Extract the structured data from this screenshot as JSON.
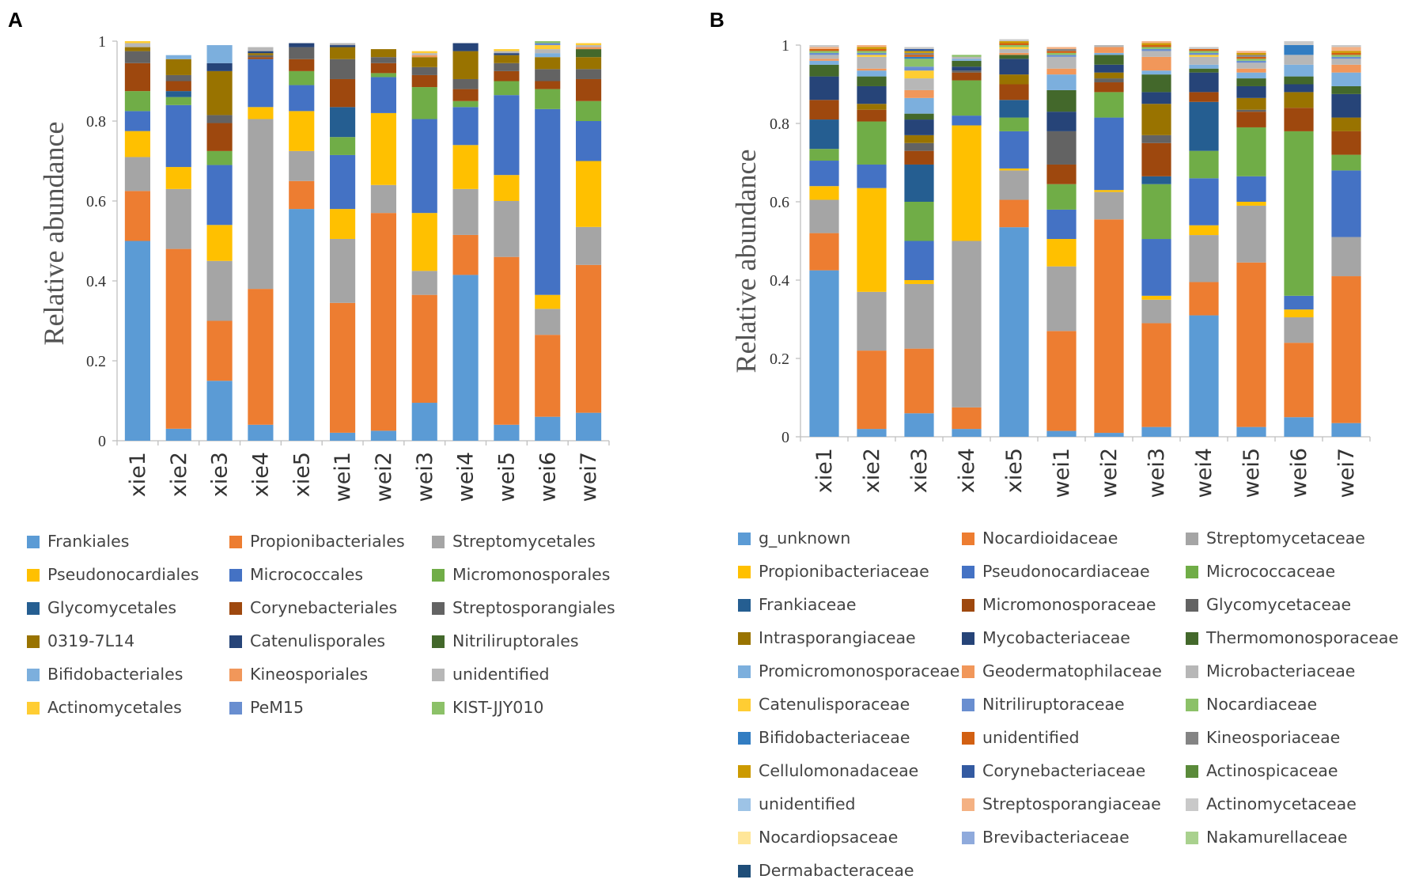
{
  "chart_data": [
    {
      "panel": "A",
      "type": "bar",
      "stacked": true,
      "title": "",
      "xlabel": "",
      "ylabel": "Relative abundance",
      "ylim": [
        0,
        1
      ],
      "yticks": [
        "0",
        "0.2",
        "0.4",
        "0.6",
        "0.8",
        "1"
      ],
      "categories": [
        "xie1",
        "xie2",
        "xie3",
        "xie4",
        "xie5",
        "wei1",
        "wei2",
        "wei3",
        "wei4",
        "wei5",
        "wei6",
        "wei7"
      ],
      "legend_position": "bottom",
      "series": [
        {
          "name": "Frankiales",
          "color": "#5b9bd5",
          "values": [
            0.5,
            0.03,
            0.15,
            0.04,
            0.58,
            0.02,
            0.025,
            0.095,
            0.415,
            0.04,
            0.06,
            0.07
          ]
        },
        {
          "name": "Propionibacteriales",
          "color": "#ed7d31",
          "values": [
            0.125,
            0.45,
            0.15,
            0.34,
            0.07,
            0.325,
            0.545,
            0.27,
            0.1,
            0.42,
            0.205,
            0.37
          ]
        },
        {
          "name": "Streptomycetales",
          "color": "#a5a5a5",
          "values": [
            0.085,
            0.15,
            0.15,
            0.425,
            0.075,
            0.16,
            0.07,
            0.06,
            0.115,
            0.14,
            0.065,
            0.095
          ]
        },
        {
          "name": "Pseudonocardiales",
          "color": "#ffc000",
          "values": [
            0.065,
            0.055,
            0.09,
            0.03,
            0.1,
            0.075,
            0.18,
            0.145,
            0.11,
            0.065,
            0.035,
            0.165
          ]
        },
        {
          "name": "Micrococcales",
          "color": "#4472c4",
          "values": [
            0.05,
            0.155,
            0.15,
            0.12,
            0.065,
            0.135,
            0.09,
            0.235,
            0.095,
            0.2,
            0.465,
            0.1
          ]
        },
        {
          "name": "Micromonosporales",
          "color": "#70ad47",
          "values": [
            0.05,
            0.02,
            0.035,
            0.0,
            0.035,
            0.045,
            0.01,
            0.08,
            0.015,
            0.035,
            0.05,
            0.05
          ]
        },
        {
          "name": "Glycomycetales",
          "color": "#255e91",
          "values": [
            0.0,
            0.015,
            0.0,
            0.0,
            0.0,
            0.075,
            0.0,
            0.0,
            0.0,
            0.0,
            0.0,
            0.0
          ]
        },
        {
          "name": "Corynebacteriales",
          "color": "#9e480e",
          "values": [
            0.07,
            0.025,
            0.07,
            0.005,
            0.03,
            0.07,
            0.025,
            0.03,
            0.03,
            0.025,
            0.02,
            0.055
          ]
        },
        {
          "name": "Streptosporangiales",
          "color": "#636363",
          "values": [
            0.03,
            0.015,
            0.02,
            0.005,
            0.03,
            0.05,
            0.015,
            0.02,
            0.025,
            0.02,
            0.03,
            0.025
          ]
        },
        {
          "name": "0319-7L14",
          "color": "#997300",
          "values": [
            0.01,
            0.04,
            0.11,
            0.005,
            0.0,
            0.03,
            0.02,
            0.025,
            0.07,
            0.02,
            0.03,
            0.03
          ]
        },
        {
          "name": "Catenulisporales",
          "color": "#264478",
          "values": [
            0.0,
            0.0,
            0.02,
            0.005,
            0.01,
            0.005,
            0.0,
            0.0,
            0.02,
            0.005,
            0.0,
            0.0
          ]
        },
        {
          "name": "Nitriliruptorales",
          "color": "#43682b",
          "values": [
            0.0,
            0.0,
            0.0,
            0.0,
            0.0,
            0.0,
            0.0,
            0.0,
            0.0,
            0.0,
            0.0,
            0.02
          ]
        },
        {
          "name": "Bifidobacteriales",
          "color": "#7cafdd",
          "values": [
            0.0,
            0.01,
            0.045,
            0.0,
            0.0,
            0.0,
            0.0,
            0.0,
            0.0,
            0.0,
            0.01,
            0.0
          ]
        },
        {
          "name": "Kineosporiales",
          "color": "#f1975a",
          "values": [
            0.0,
            0.0,
            0.0,
            0.0,
            0.0,
            0.0,
            0.0,
            0.005,
            0.0,
            0.0,
            0.0,
            0.005
          ]
        },
        {
          "name": "unidentified",
          "color": "#b7b7b7",
          "values": [
            0.01,
            0.0,
            0.0,
            0.01,
            0.0,
            0.005,
            0.0,
            0.005,
            0.0,
            0.005,
            0.01,
            0.005
          ]
        },
        {
          "name": "Actinomycetales",
          "color": "#ffcd33",
          "values": [
            0.005,
            0.0,
            0.0,
            0.0,
            0.0,
            0.0,
            0.0,
            0.005,
            0.0,
            0.005,
            0.01,
            0.005
          ]
        },
        {
          "name": "PeM15",
          "color": "#698ed0",
          "values": [
            0.0,
            0.0,
            0.0,
            0.0,
            0.0,
            0.0,
            0.0,
            0.0,
            0.0,
            0.0,
            0.005,
            0.0
          ]
        },
        {
          "name": "KIST-JJY010",
          "color": "#8cc168",
          "values": [
            0.0,
            0.0,
            0.0,
            0.0,
            0.0,
            0.0,
            0.0,
            0.0,
            0.0,
            0.0,
            0.005,
            0.0
          ]
        }
      ]
    },
    {
      "panel": "B",
      "type": "bar",
      "stacked": true,
      "title": "",
      "xlabel": "",
      "ylabel": "Relative abundance",
      "ylim": [
        0,
        1
      ],
      "yticks": [
        "0",
        "0.2",
        "0.4",
        "0.6",
        "0.8",
        "1"
      ],
      "categories": [
        "xie1",
        "xie2",
        "xie3",
        "xie4",
        "xie5",
        "wei1",
        "wei2",
        "wei3",
        "wei4",
        "wei5",
        "wei6",
        "wei7"
      ],
      "legend_position": "bottom",
      "series": [
        {
          "name": "g_unknown",
          "color": "#5b9bd5",
          "values": [
            0.425,
            0.02,
            0.06,
            0.02,
            0.535,
            0.015,
            0.01,
            0.025,
            0.31,
            0.025,
            0.05,
            0.035
          ]
        },
        {
          "name": "Nocardioidaceae",
          "color": "#ed7d31",
          "values": [
            0.095,
            0.2,
            0.165,
            0.055,
            0.07,
            0.255,
            0.545,
            0.265,
            0.085,
            0.42,
            0.19,
            0.375
          ]
        },
        {
          "name": "Streptomycetaceae",
          "color": "#a5a5a5",
          "values": [
            0.085,
            0.15,
            0.165,
            0.425,
            0.075,
            0.165,
            0.07,
            0.06,
            0.12,
            0.145,
            0.065,
            0.1
          ]
        },
        {
          "name": "Propionibacteriaceae",
          "color": "#ffc000",
          "values": [
            0.035,
            0.265,
            0.01,
            0.295,
            0.005,
            0.07,
            0.005,
            0.01,
            0.025,
            0.01,
            0.02,
            0.0
          ]
        },
        {
          "name": "Pseudonocardiaceae",
          "color": "#4472c4",
          "values": [
            0.065,
            0.06,
            0.1,
            0.025,
            0.095,
            0.075,
            0.185,
            0.145,
            0.12,
            0.065,
            0.035,
            0.17
          ]
        },
        {
          "name": "Micrococcaceae",
          "color": "#70ad47",
          "values": [
            0.03,
            0.11,
            0.1,
            0.09,
            0.035,
            0.065,
            0.065,
            0.14,
            0.07,
            0.125,
            0.42,
            0.04
          ]
        },
        {
          "name": "Frankiaceae",
          "color": "#255e91",
          "values": [
            0.075,
            0.0,
            0.095,
            0.0,
            0.045,
            0.0,
            0.0,
            0.02,
            0.125,
            0.0,
            0.0,
            0.0
          ]
        },
        {
          "name": "Micromonosporaceae",
          "color": "#9e480e",
          "values": [
            0.05,
            0.03,
            0.035,
            0.02,
            0.04,
            0.05,
            0.025,
            0.085,
            0.025,
            0.04,
            0.06,
            0.06
          ]
        },
        {
          "name": "Glycomycetaceae",
          "color": "#636363",
          "values": [
            0.0,
            0.0,
            0.02,
            0.005,
            0.0,
            0.085,
            0.01,
            0.02,
            0.0,
            0.005,
            0.0,
            0.0
          ]
        },
        {
          "name": "Intrasporangiaceae",
          "color": "#997300",
          "values": [
            0.0,
            0.015,
            0.02,
            0.0,
            0.025,
            0.0,
            0.015,
            0.08,
            0.0,
            0.03,
            0.04,
            0.035
          ]
        },
        {
          "name": "Mycobacteriaceae",
          "color": "#264478",
          "values": [
            0.06,
            0.045,
            0.04,
            0.01,
            0.04,
            0.05,
            0.02,
            0.03,
            0.05,
            0.03,
            0.02,
            0.06
          ]
        },
        {
          "name": "Thermomonosporaceae",
          "color": "#43682b",
          "values": [
            0.03,
            0.025,
            0.015,
            0.015,
            0.01,
            0.055,
            0.025,
            0.045,
            0.01,
            0.02,
            0.02,
            0.02
          ]
        },
        {
          "name": "Promicromonosporaceae",
          "color": "#7cafdd",
          "values": [
            0.01,
            0.015,
            0.04,
            0.005,
            0.0,
            0.04,
            0.005,
            0.01,
            0.01,
            0.015,
            0.03,
            0.035
          ]
        },
        {
          "name": "Geodermatophilaceae",
          "color": "#f1975a",
          "values": [
            0.005,
            0.005,
            0.02,
            0.0,
            0.005,
            0.015,
            0.015,
            0.035,
            0.0,
            0.01,
            0.0,
            0.02
          ]
        },
        {
          "name": "Microbacteriaceae",
          "color": "#b7b7b7",
          "values": [
            0.01,
            0.03,
            0.03,
            0.005,
            0.01,
            0.03,
            0.005,
            0.015,
            0.02,
            0.015,
            0.025,
            0.015
          ]
        },
        {
          "name": "Catenulisporaceae",
          "color": "#ffcd33",
          "values": [
            0.0,
            0.005,
            0.02,
            0.0,
            0.005,
            0.0,
            0.0,
            0.0,
            0.005,
            0.0,
            0.0,
            0.0
          ]
        },
        {
          "name": "Nitriliruptoraceae",
          "color": "#698ed0",
          "values": [
            0.005,
            0.005,
            0.01,
            0.0,
            0.0,
            0.005,
            0.0,
            0.005,
            0.005,
            0.005,
            0.0,
            0.005
          ]
        },
        {
          "name": "Nocardiaceae",
          "color": "#8cc168",
          "values": [
            0.005,
            0.005,
            0.02,
            0.005,
            0.005,
            0.005,
            0.0,
            0.005,
            0.005,
            0.005,
            0.0,
            0.005
          ]
        },
        {
          "name": "Bifidobacteriaceae",
          "color": "#327dc2",
          "values": [
            0.0,
            0.0,
            0.005,
            0.0,
            0.0,
            0.0,
            0.0,
            0.0,
            0.0,
            0.0,
            0.025,
            0.0
          ]
        },
        {
          "name": "unidentified",
          "color": "#d26012",
          "values": [
            0.005,
            0.005,
            0.005,
            0.0,
            0.005,
            0.005,
            0.0,
            0.005,
            0.005,
            0.005,
            0.0,
            0.005
          ]
        },
        {
          "name": "Kineosporiaceae",
          "color": "#848484",
          "values": [
            0.0,
            0.0,
            0.005,
            0.0,
            0.0,
            0.005,
            0.0,
            0.0,
            0.0,
            0.005,
            0.0,
            0.0
          ]
        },
        {
          "name": "Cellulomonadaceae",
          "color": "#cc9a00",
          "values": [
            0.0,
            0.005,
            0.005,
            0.0,
            0.005,
            0.0,
            0.0,
            0.005,
            0.0,
            0.005,
            0.0,
            0.005
          ]
        },
        {
          "name": "Corynebacteriaceae",
          "color": "#335aa1",
          "values": [
            0.0,
            0.0,
            0.005,
            0.0,
            0.0,
            0.0,
            0.0,
            0.0,
            0.0,
            0.0,
            0.0,
            0.0
          ]
        },
        {
          "name": "Actinospicaceae",
          "color": "#5a8a3a",
          "values": [
            0.0,
            0.0,
            0.0,
            0.0,
            0.0,
            0.0,
            0.0,
            0.0,
            0.0,
            0.0,
            0.0,
            0.0
          ]
        },
        {
          "name": "unidentified",
          "color": "#9dc3e6",
          "values": [
            0.0,
            0.0,
            0.0,
            0.0,
            0.0,
            0.0,
            0.0,
            0.0,
            0.0,
            0.0,
            0.0,
            0.0
          ]
        },
        {
          "name": "Streptosporangiaceae",
          "color": "#f4b183",
          "values": [
            0.005,
            0.005,
            0.0,
            0.0,
            0.0,
            0.005,
            0.0,
            0.005,
            0.0,
            0.005,
            0.0,
            0.01
          ]
        },
        {
          "name": "Actinomycetaceae",
          "color": "#c9c9c9",
          "values": [
            0.005,
            0.0,
            0.005,
            0.0,
            0.005,
            0.0,
            0.0,
            0.0,
            0.005,
            0.0,
            0.01,
            0.005
          ]
        },
        {
          "name": "Nocardiopsaceae",
          "color": "#ffe699",
          "values": [
            0.0,
            0.0,
            0.0,
            0.0,
            0.0,
            0.0,
            0.0,
            0.0,
            0.0,
            0.0,
            0.0,
            0.0
          ]
        },
        {
          "name": "Brevibacteriaceae",
          "color": "#8faadc",
          "values": [
            0.0,
            0.0,
            0.0,
            0.0,
            0.0,
            0.0,
            0.0,
            0.0,
            0.0,
            0.0,
            0.0,
            0.0
          ]
        },
        {
          "name": "Nakamurellaceae",
          "color": "#a9d18e",
          "values": [
            0.0,
            0.0,
            0.0,
            0.0,
            0.0,
            0.0,
            0.0,
            0.0,
            0.0,
            0.0,
            0.0,
            0.0
          ]
        },
        {
          "name": "Dermabacteraceae",
          "color": "#1f4e79",
          "values": [
            0.0,
            0.0,
            0.0,
            0.0,
            0.0,
            0.0,
            0.0,
            0.0,
            0.0,
            0.0,
            0.0,
            0.0
          ]
        }
      ]
    }
  ]
}
